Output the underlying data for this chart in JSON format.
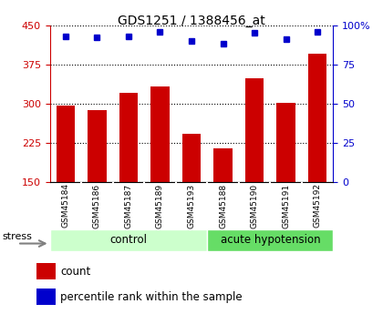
{
  "title": "GDS1251 / 1388456_at",
  "samples": [
    "GSM45184",
    "GSM45186",
    "GSM45187",
    "GSM45189",
    "GSM45193",
    "GSM45188",
    "GSM45190",
    "GSM45191",
    "GSM45192"
  ],
  "counts": [
    297,
    288,
    320,
    333,
    242,
    215,
    348,
    302,
    395
  ],
  "percentiles": [
    93,
    92,
    93,
    96,
    90,
    88,
    95,
    91,
    96
  ],
  "control_indices": [
    0,
    1,
    2,
    3,
    4
  ],
  "hyp_indices": [
    5,
    6,
    7,
    8
  ],
  "control_color": "#ccffcc",
  "hypotension_color": "#66dd66",
  "bar_color": "#cc0000",
  "dot_color": "#0000cc",
  "ylim_left": [
    150,
    450
  ],
  "ylim_right": [
    0,
    100
  ],
  "yticks_left": [
    150,
    225,
    300,
    375,
    450
  ],
  "yticks_right": [
    0,
    25,
    50,
    75,
    100
  ],
  "yticklabels_right": [
    "0",
    "25",
    "50",
    "75",
    "100%"
  ],
  "bg_color": "#dddddd",
  "stress_label": "stress",
  "control_label": "control",
  "hypotension_label": "acute hypotension",
  "legend_count": "count",
  "legend_pct": "percentile rank within the sample"
}
